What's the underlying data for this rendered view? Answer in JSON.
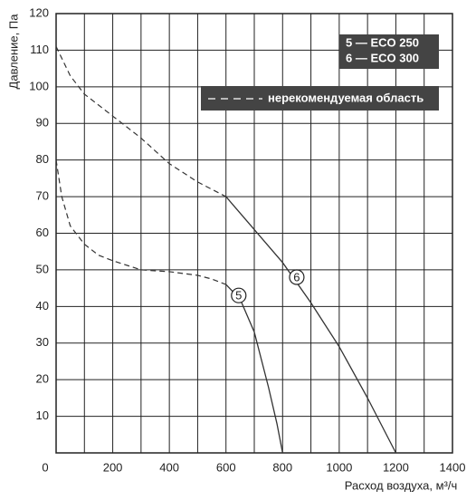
{
  "chart_data": {
    "type": "line",
    "xlabel": "Расход воздуха, м³/ч",
    "ylabel": "Давление, Па",
    "xlim": [
      0,
      1400
    ],
    "ylim": [
      0,
      120
    ],
    "xticks": [
      0,
      200,
      400,
      600,
      800,
      1000,
      1200,
      1400
    ],
    "xminor": [
      100,
      300,
      500,
      700,
      900,
      1100,
      1300
    ],
    "yticks": [
      10,
      20,
      30,
      40,
      50,
      60,
      70,
      80,
      90,
      100,
      110,
      120
    ],
    "grid": true,
    "color": "#333333",
    "dash_below_x": 600,
    "dash_label": "нерекомендуемая область",
    "series": [
      {
        "name": "5 — ECO 250",
        "label": "5",
        "label_at": [
          645,
          43
        ],
        "x": [
          0,
          20,
          50,
          100,
          150,
          200,
          300,
          400,
          500,
          550,
          600,
          650,
          700,
          750,
          780,
          800
        ],
        "values": [
          80,
          70,
          62,
          57,
          54,
          52.5,
          50,
          49.5,
          48.5,
          47.5,
          46,
          42,
          33,
          18,
          8,
          0
        ]
      },
      {
        "name": "6 — ECO 300",
        "label": "6",
        "label_at": [
          850,
          48
        ],
        "x": [
          0,
          50,
          100,
          200,
          300,
          400,
          500,
          600,
          700,
          800,
          900,
          1000,
          1100,
          1200
        ],
        "values": [
          111,
          103,
          98,
          92,
          86,
          79,
          74,
          70,
          61,
          52,
          41,
          29,
          15,
          0
        ]
      }
    ]
  }
}
